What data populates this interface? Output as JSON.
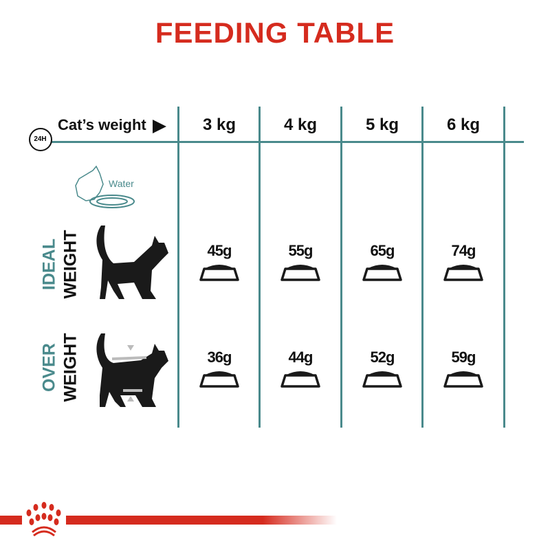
{
  "title": "FEEDING TABLE",
  "header": {
    "icon_label": "24H",
    "row_label": "Cat’s weight",
    "weights": [
      "3 kg",
      "4 kg",
      "5 kg",
      "6 kg"
    ]
  },
  "water_label": "Water",
  "rows": [
    {
      "label_top": "IDEAL",
      "label_bottom": "WEIGHT",
      "values": [
        "45g",
        "55g",
        "65g",
        "74g"
      ]
    },
    {
      "label_top": "OVER",
      "label_bottom": "WEIGHT",
      "values": [
        "36g",
        "44g",
        "52g",
        "59g"
      ]
    }
  ],
  "colors": {
    "title": "#d52b1e",
    "lines": "#4a8a8c",
    "brand_red": "#d52b1e"
  },
  "icons": [
    "clock-24h-icon",
    "arrow-right-icon",
    "water-bowl-icon",
    "cat-silhouette-icon",
    "food-bowl-icon",
    "royal-canin-crown-logo"
  ]
}
